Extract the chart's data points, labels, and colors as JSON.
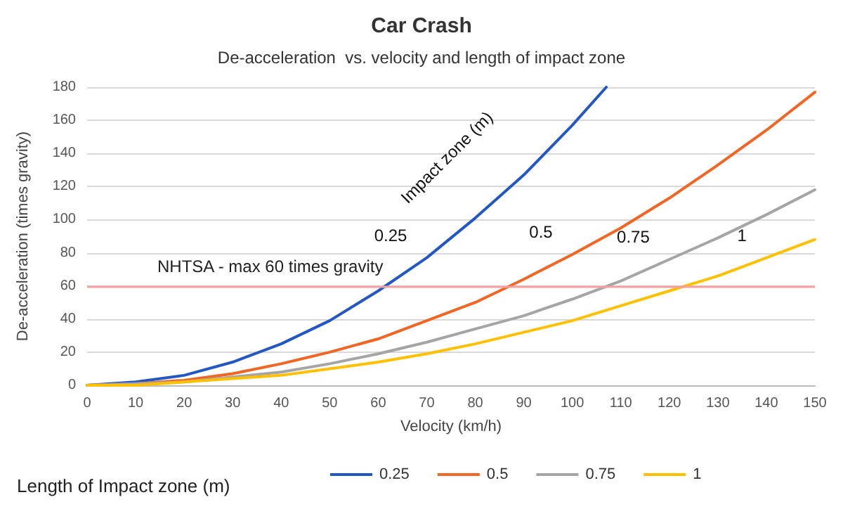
{
  "chart_data": {
    "type": "line",
    "title": "Car Crash",
    "subtitle": "De-acceleration  vs. velocity and length of impact zone",
    "xlabel": "Velocity (km/h)",
    "ylabel": "De-acceleration (times gravity)",
    "legend_title": "Length of Impact zone (m)",
    "x": [
      0,
      10,
      20,
      30,
      40,
      50,
      60,
      70,
      80,
      90,
      100,
      110,
      120,
      130,
      140,
      150
    ],
    "series": [
      {
        "name": "0.25",
        "color": "#2257c5",
        "x": [
          0,
          10,
          20,
          30,
          40,
          50,
          60,
          70,
          80,
          90,
          100,
          107
        ],
        "values": [
          0,
          2,
          6,
          14,
          25,
          39,
          57,
          77,
          101,
          127,
          157,
          180
        ]
      },
      {
        "name": "0.5",
        "color": "#f26522",
        "values": [
          0,
          1,
          3,
          7,
          13,
          20,
          28,
          39,
          50,
          64,
          79,
          95,
          113,
          133,
          154,
          177
        ]
      },
      {
        "name": "0.75",
        "color": "#a5a5a5",
        "values": [
          0,
          1,
          2,
          5,
          8,
          13,
          19,
          26,
          34,
          42,
          52,
          63,
          76,
          89,
          103,
          118
        ]
      },
      {
        "name": "1",
        "color": "#ffc000",
        "values": [
          0,
          0,
          2,
          4,
          6,
          10,
          14,
          19,
          25,
          32,
          39,
          48,
          57,
          66,
          77,
          88
        ]
      }
    ],
    "xlim": [
      0,
      150
    ],
    "xticks": [
      0,
      10,
      20,
      30,
      40,
      50,
      60,
      70,
      80,
      90,
      100,
      110,
      120,
      130,
      140,
      150
    ],
    "ylim": [
      0,
      180
    ],
    "yticks": [
      0,
      20,
      40,
      60,
      80,
      100,
      120,
      140,
      160,
      180
    ],
    "ref_lines": [
      {
        "axis": "y",
        "value": 60,
        "label": "NHTSA - max 60 times gravity",
        "color": "#f4a0a0"
      }
    ],
    "annotations": [
      "Impact zone (m)"
    ],
    "grid": "y",
    "legend": "bottom",
    "marker": "none",
    "line_style": "solid"
  }
}
